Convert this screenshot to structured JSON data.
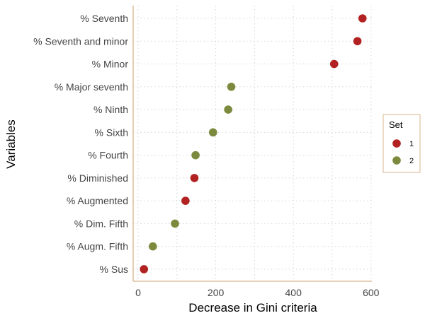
{
  "chart_data": {
    "type": "scatter",
    "xlabel": "Decrease in Gini criteria",
    "ylabel": "Variables",
    "xlim": [
      0,
      600
    ],
    "xticks": [
      0,
      200,
      400,
      600
    ],
    "grid": true,
    "legend": {
      "title": "Set",
      "placement": "right",
      "entries": [
        {
          "label": "1",
          "color": "#b22222"
        },
        {
          "label": "2",
          "color": "#7b8a3c"
        }
      ]
    },
    "categories": [
      "% Seventh",
      "% Seventh and minor",
      "% Minor",
      "% Major seventh",
      "% Ninth",
      "% Sixth",
      "% Fourth",
      "% Diminished",
      "% Augmented",
      "% Dim. Fifth",
      "% Augm. Fifth",
      "% Sus"
    ],
    "points": [
      {
        "variable": "% Seventh",
        "x": 578,
        "set": "1"
      },
      {
        "variable": "% Seventh and minor",
        "x": 565,
        "set": "1"
      },
      {
        "variable": "% Minor",
        "x": 505,
        "set": "1"
      },
      {
        "variable": "% Major seventh",
        "x": 240,
        "set": "2"
      },
      {
        "variable": "% Ninth",
        "x": 232,
        "set": "2"
      },
      {
        "variable": "% Sixth",
        "x": 193,
        "set": "2"
      },
      {
        "variable": "% Fourth",
        "x": 148,
        "set": "2"
      },
      {
        "variable": "% Diminished",
        "x": 145,
        "set": "1"
      },
      {
        "variable": "% Augmented",
        "x": 122,
        "set": "1"
      },
      {
        "variable": "% Dim. Fifth",
        "x": 95,
        "set": "2"
      },
      {
        "variable": "% Augm. Fifth",
        "x": 38,
        "set": "2"
      },
      {
        "variable": "% Sus",
        "x": 15,
        "set": "1"
      }
    ],
    "colors": {
      "axis": "#d8b48c",
      "grid": "#d6d6d6"
    }
  }
}
